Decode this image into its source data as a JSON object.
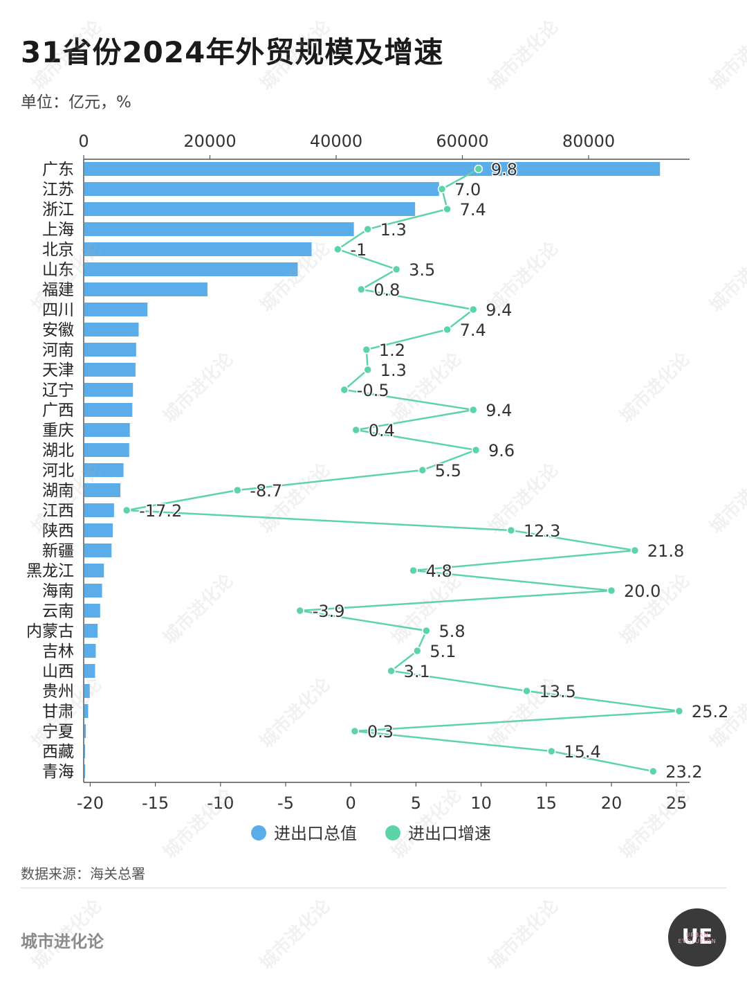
{
  "title": "31省份2024年外贸规模及增速",
  "unit": "单位：亿元，%",
  "source": "数据来源：海关总署",
  "brand": "城市进化论",
  "logo": {
    "main": "UE",
    "sub": "URBAN EVOLUTION"
  },
  "watermark": "城市进化论",
  "colors": {
    "bar": "#5aade8",
    "line": "#5dd4a8",
    "axis": "#555555"
  },
  "chart_data": {
    "type": "bar",
    "categories": [
      "广东",
      "江苏",
      "浙江",
      "上海",
      "北京",
      "山东",
      "福建",
      "四川",
      "安徽",
      "河南",
      "天津",
      "辽宁",
      "广西",
      "重庆",
      "湖北",
      "河北",
      "湖南",
      "江西",
      "陕西",
      "新疆",
      "黑龙江",
      "海南",
      "云南",
      "内蒙古",
      "吉林",
      "山西",
      "贵州",
      "甘肃",
      "宁夏",
      "西藏",
      "青海"
    ],
    "series": [
      {
        "name": "进出口总值",
        "type": "bar",
        "axis": "top",
        "values": [
          91200,
          56200,
          52400,
          42700,
          36000,
          33800,
          19500,
          10000,
          8600,
          8200,
          8100,
          7700,
          7600,
          7200,
          7100,
          6200,
          5700,
          4700,
          4500,
          4300,
          3100,
          2800,
          2500,
          2100,
          1800,
          1700,
          850,
          600,
          230,
          80,
          55
        ]
      },
      {
        "name": "进出口增速",
        "type": "line",
        "axis": "bottom",
        "values": [
          9.8,
          7.0,
          7.4,
          1.3,
          -1,
          3.5,
          0.8,
          9.4,
          7.4,
          1.2,
          1.3,
          -0.5,
          9.4,
          0.4,
          9.6,
          5.5,
          -8.7,
          -17.2,
          12.3,
          21.8,
          4.8,
          20.0,
          -3.9,
          5.8,
          5.1,
          3.1,
          13.5,
          25.2,
          0.3,
          15.4,
          23.2
        ],
        "labels": [
          "9.8",
          "7.0",
          "7.4",
          "1.3",
          "-1",
          "3.5",
          "0.8",
          "9.4",
          "7.4",
          "1.2",
          "1.3",
          "-0.5",
          "9.4",
          "0.4",
          "9.6",
          "5.5",
          "-8.7",
          "-17.2",
          "12.3",
          "21.8",
          "4.8",
          "20.0",
          "-3.9",
          "5.8",
          "5.1",
          "3.1",
          "13.5",
          "25.2",
          "0.3",
          "15.4",
          "23.2"
        ]
      }
    ],
    "top_axis": {
      "ticks": [
        "0",
        "20000",
        "40000",
        "60000",
        "80000"
      ],
      "tick_values": [
        0,
        20000,
        40000,
        60000,
        80000
      ],
      "range": [
        0,
        96000
      ]
    },
    "bottom_axis": {
      "ticks": [
        "-20",
        "-15",
        "-10",
        "-5",
        "0",
        "5",
        "10",
        "15",
        "20",
        "25"
      ],
      "tick_values": [
        -20,
        -15,
        -10,
        -5,
        0,
        5,
        10,
        15,
        20,
        25
      ],
      "range": [
        -20.5,
        26
      ]
    },
    "legend": [
      "进出口总值",
      "进出口增速"
    ],
    "legend_position": "bottom-center"
  }
}
